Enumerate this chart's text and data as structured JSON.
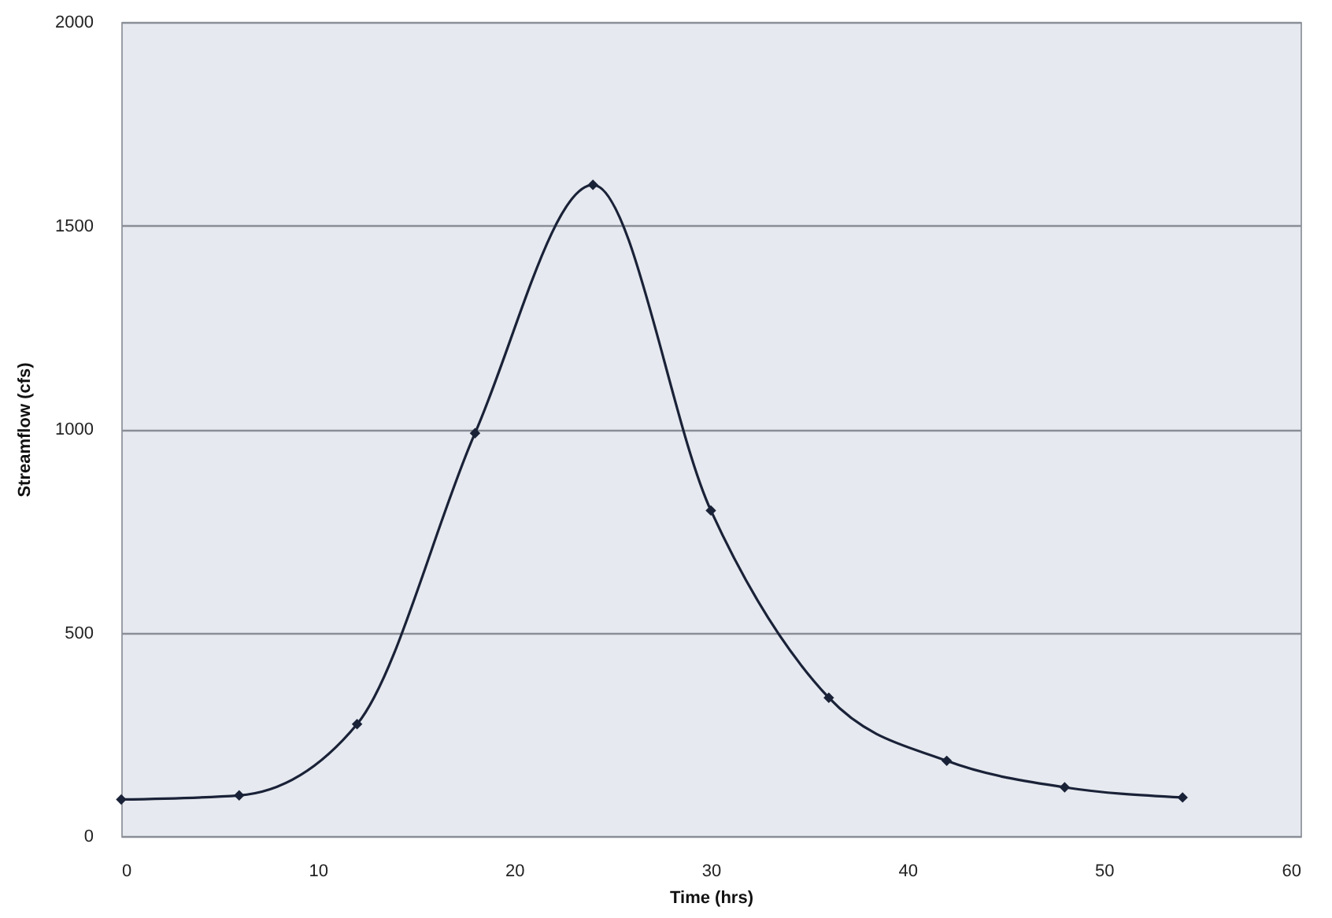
{
  "chart_data": {
    "type": "line",
    "xlabel": "Time (hrs)",
    "ylabel": "Streamflow (cfs)",
    "x": [
      0,
      6,
      12,
      18,
      24,
      30,
      36,
      42,
      48,
      54
    ],
    "series": [
      {
        "color": "#1a2238",
        "values": [
          90,
          100,
          275,
          990,
          1600,
          800,
          340,
          185,
          120,
          95
        ]
      }
    ],
    "xlim": [
      0,
      60
    ],
    "xticks": [
      0,
      10,
      20,
      30,
      40,
      50,
      60
    ],
    "ylim": [
      0,
      2000
    ],
    "yticks": [
      0,
      500,
      1000,
      1500,
      2000
    ],
    "grid": "y",
    "marker": "diamond",
    "line_style": "solid"
  }
}
